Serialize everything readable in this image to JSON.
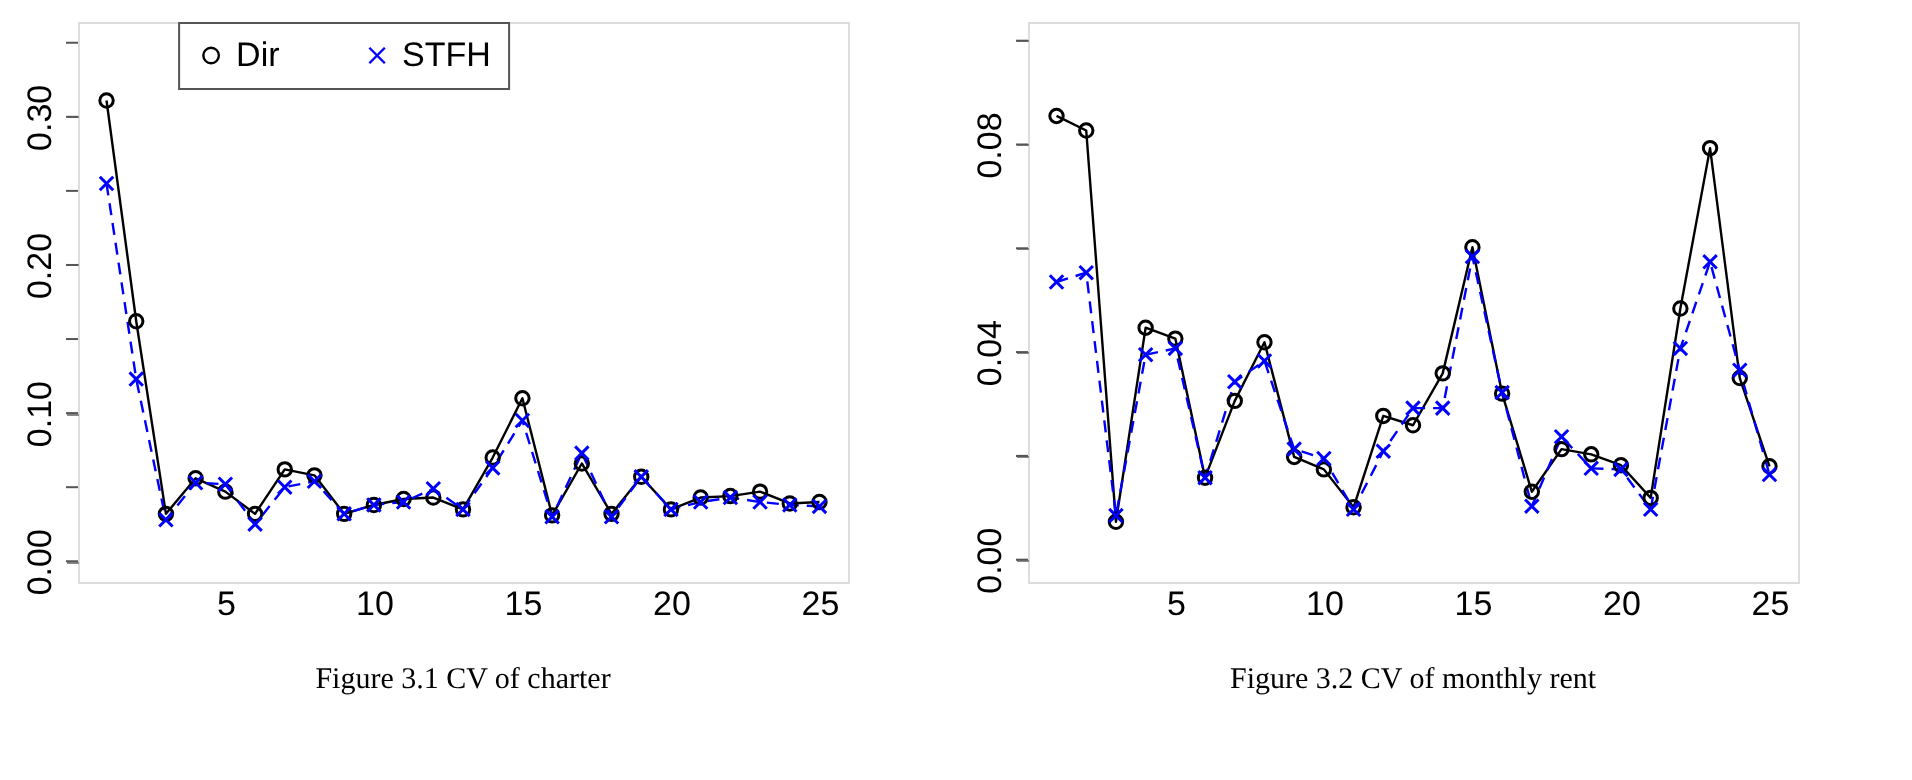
{
  "chart_data": [
    {
      "type": "line",
      "title": "Figure 3.1 CV of charter",
      "x": [
        1,
        2,
        3,
        4,
        5,
        6,
        7,
        8,
        9,
        10,
        11,
        12,
        13,
        14,
        15,
        16,
        17,
        18,
        19,
        20,
        21,
        22,
        23,
        24,
        25
      ],
      "series": [
        {
          "name": "Dir",
          "color": "#000000",
          "marker": "circle",
          "line_style": "solid",
          "values": [
            0.311,
            0.162,
            0.032,
            0.056,
            0.047,
            0.032,
            0.062,
            0.058,
            0.032,
            0.038,
            0.042,
            0.043,
            0.035,
            0.07,
            0.11,
            0.031,
            0.066,
            0.032,
            0.057,
            0.035,
            0.043,
            0.044,
            0.047,
            0.039,
            0.04
          ]
        },
        {
          "name": "STFH",
          "color": "#0000ff",
          "marker": "cross",
          "line_style": "dashed",
          "values": [
            0.255,
            0.123,
            0.028,
            0.053,
            0.052,
            0.025,
            0.05,
            0.054,
            0.032,
            0.038,
            0.04,
            0.049,
            0.035,
            0.063,
            0.095,
            0.03,
            0.073,
            0.03,
            0.057,
            0.035,
            0.04,
            0.043,
            0.04,
            0.038,
            0.037
          ]
        }
      ],
      "xlim": [
        0.04,
        25.96
      ],
      "xticks": [
        5,
        10,
        15,
        20,
        25
      ],
      "ylim": [
        -0.014,
        0.364
      ],
      "yticks": [
        {
          "value": 0,
          "label": "0.00"
        },
        {
          "value": 0.05,
          "label": null
        },
        {
          "value": 0.1,
          "label": "0.10"
        },
        {
          "value": 0.15,
          "label": null
        },
        {
          "value": 0.2,
          "label": "0.20"
        },
        {
          "value": 0.25,
          "label": null
        },
        {
          "value": 0.3,
          "label": "0.30"
        },
        {
          "value": 0.35,
          "label": null
        }
      ],
      "grid": false,
      "legend": "top"
    },
    {
      "type": "line",
      "title": "Figure 3.2 CV of monthly rent",
      "x": [
        1,
        2,
        3,
        4,
        5,
        6,
        7,
        8,
        9,
        10,
        11,
        12,
        13,
        14,
        15,
        16,
        17,
        18,
        19,
        20,
        21,
        22,
        23,
        24,
        25
      ],
      "series": [
        {
          "name": "Dir",
          "color": "#000000",
          "marker": "circle",
          "line_style": "solid",
          "values": [
            0.0855,
            0.0827,
            0.0073,
            0.0447,
            0.0426,
            0.0158,
            0.0306,
            0.0419,
            0.0198,
            0.0174,
            0.0101,
            0.0277,
            0.0259,
            0.0359,
            0.0602,
            0.032,
            0.0131,
            0.0213,
            0.0203,
            0.0182,
            0.0119,
            0.0484,
            0.0793,
            0.035,
            0.018
          ]
        },
        {
          "name": "STFH",
          "color": "#0000ff",
          "marker": "cross",
          "line_style": "dashed",
          "values": [
            0.0535,
            0.0553,
            0.0085,
            0.0395,
            0.0407,
            0.0158,
            0.0343,
            0.0383,
            0.0213,
            0.0195,
            0.0097,
            0.0209,
            0.0292,
            0.0292,
            0.0584,
            0.0322,
            0.0103,
            0.0237,
            0.0176,
            0.0174,
            0.0097,
            0.0407,
            0.0574,
            0.0365,
            0.0164
          ]
        }
      ],
      "xlim": [
        0.04,
        25.96
      ],
      "xticks": [
        5,
        10,
        15,
        20,
        25
      ],
      "ylim": [
        -0.0043,
        0.1036
      ],
      "yticks": [
        {
          "value": 0,
          "label": "0.00"
        },
        {
          "value": 0.02,
          "label": null
        },
        {
          "value": 0.04,
          "label": "0.04"
        },
        {
          "value": 0.06,
          "label": null
        },
        {
          "value": 0.08,
          "label": "0.08"
        },
        {
          "value": 0.1,
          "label": null
        }
      ],
      "grid": false,
      "legend": "top"
    }
  ]
}
